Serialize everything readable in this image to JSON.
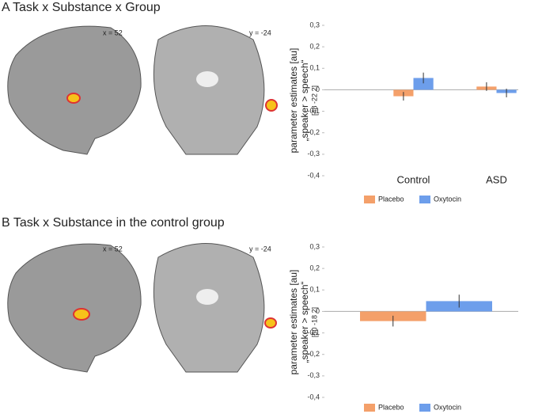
{
  "panels": [
    {
      "title": "A Task x Substance x Group",
      "image_labels": [
        "x = 52",
        "y = -24"
      ]
    },
    {
      "title": "B Task x Substance in the control group",
      "image_labels": [
        "x = 52",
        "y = -24"
      ]
    }
  ],
  "chart_data": [
    {
      "type": "bar",
      "ylabel": [
        "parameter estimates [au]",
        "„speaker > speech“",
        "[48 -22 2]"
      ],
      "categories": [
        "Control",
        "ASD"
      ],
      "series": [
        {
          "name": "Placebo",
          "color": "#f4a06a",
          "values": [
            -0.03,
            0.015
          ],
          "errors": [
            0.02,
            0.02
          ]
        },
        {
          "name": "Oxytocin",
          "color": "#6d9eeb",
          "values": [
            0.055,
            -0.015
          ],
          "errors": [
            0.025,
            0.02
          ]
        }
      ],
      "ylim": [
        -0.4,
        0.3
      ],
      "yticks": [
        {
          "value": 0.3,
          "label": "0,3"
        },
        {
          "value": 0.2,
          "label": "0,2"
        },
        {
          "value": 0.1,
          "label": "0,1"
        },
        0,
        {
          "value": -0.1,
          "label": "-0,1"
        },
        {
          "value": -0.2,
          "label": "-0,2"
        },
        {
          "value": -0.3,
          "label": "-0,3"
        },
        {
          "value": -0.4,
          "label": "-0,4"
        }
      ]
    },
    {
      "type": "bar",
      "ylabel": [
        "parameter estimates [au]",
        "„speaker > speech“",
        "[50 -18 2]"
      ],
      "categories": [
        null
      ],
      "series": [
        {
          "name": "Placebo",
          "color": "#f4a06a",
          "values": [
            -0.045
          ],
          "errors": [
            0.025
          ]
        },
        {
          "name": "Oxytocin",
          "color": "#6d9eeb",
          "values": [
            0.048
          ],
          "errors": [
            0.03
          ]
        }
      ],
      "ylim": [
        -0.4,
        0.3
      ],
      "yticks": [
        {
          "value": 0.3,
          "label": "0,3"
        },
        {
          "value": 0.2,
          "label": "0,2"
        },
        {
          "value": 0.1,
          "label": "0,1"
        },
        0,
        {
          "value": -0.1,
          "label": "-0,1"
        },
        {
          "value": -0.2,
          "label": "-0,2"
        },
        {
          "value": -0.3,
          "label": "-0,3"
        },
        {
          "value": -0.4,
          "label": "-0,4"
        }
      ]
    }
  ]
}
